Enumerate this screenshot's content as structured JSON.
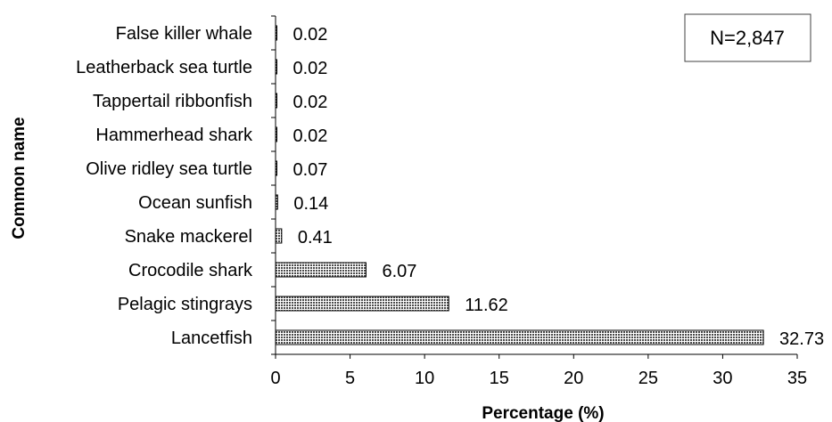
{
  "chart_data": {
    "type": "bar",
    "orientation": "horizontal",
    "categories": [
      "Lancetfish",
      "Pelagic stingrays",
      "Crocodile shark",
      "Snake mackerel",
      "Ocean sunfish",
      "Olive ridley sea turtle",
      "Hammerhead shark",
      "Tappertail ribbonfish",
      "Leatherback sea turtle",
      "False killer whale"
    ],
    "values": [
      32.73,
      11.62,
      6.07,
      0.41,
      0.14,
      0.07,
      0.02,
      0.02,
      0.02,
      0.02
    ],
    "value_labels": [
      "32.73",
      "11.62",
      "6.07",
      "0.41",
      "0.14",
      "0.07",
      "0.02",
      "0.02",
      "0.02",
      "0.02"
    ],
    "xlabel": "Percentage (%)",
    "ylabel": "Common name",
    "xlim": [
      0,
      35
    ],
    "xticks": [
      "0",
      "5",
      "10",
      "15",
      "20",
      "25",
      "30",
      "35"
    ],
    "annotation": "N=2,847",
    "grid": false,
    "bar_fill": "dotted-pattern",
    "colors": {
      "bar": "#6b6b6b",
      "bar_outline": "#000000",
      "axis": "#000000"
    }
  }
}
